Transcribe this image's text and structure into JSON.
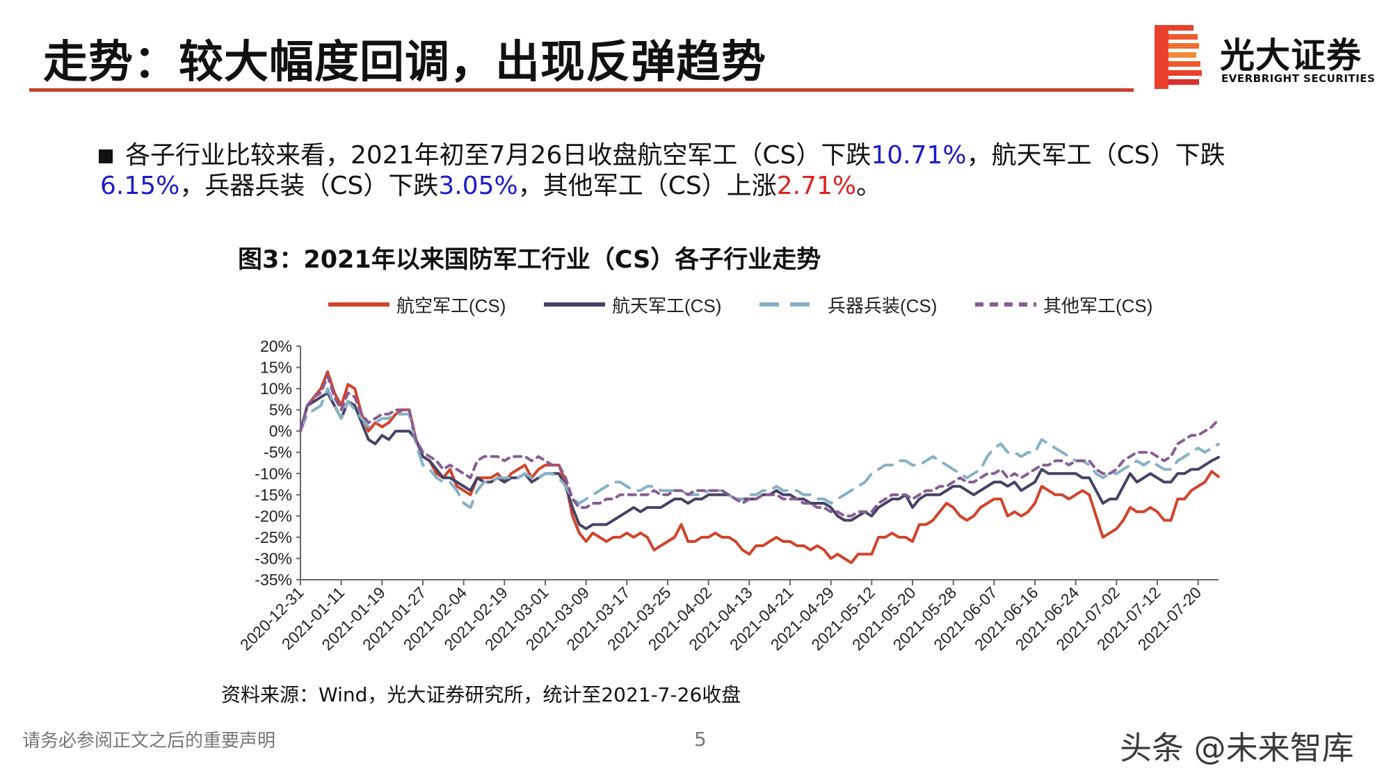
{
  "header": {
    "title": "走势：较大幅度回调，出现反弹趋势",
    "logo_cn": "光大证券",
    "logo_en": "EVERBRIGHT SECURITIES"
  },
  "bullet": {
    "p1": "各子行业比较来看，2021年初至7月26日收盘航空军工（CS）下跌",
    "v1": "10.71%",
    "p2": "，航天军工（CS）下跌",
    "v2": "6.15%",
    "p3": "，兵器兵装（CS）下跌",
    "v3": "3.05%",
    "p4": "，其他军工（CS）上涨",
    "v4": "2.71%",
    "p5": "。"
  },
  "source_note": "资料来源：Wind，光大证券研究所，统计至2021-7-26收盘",
  "footer": {
    "disclaimer": "请务必参阅正文之后的重要声明",
    "page": "5",
    "watermark": "头条 @未来智库"
  },
  "colors": {
    "accent": "#c8402a",
    "aviation": "#d1432a",
    "aerospace": "#454266",
    "weapons": "#85b0c6",
    "other": "#8a5a94",
    "value_blue": "#1a1acc",
    "value_red": "#e02020"
  },
  "chart_data": {
    "type": "line",
    "title": "图3：2021年以来国防军工行业（CS）各子行业走势",
    "xlabel": "",
    "ylabel": "",
    "ylim": [
      -35,
      20
    ],
    "yticks": [
      20,
      15,
      10,
      5,
      0,
      -5,
      -10,
      -15,
      -20,
      -25,
      -30,
      -35
    ],
    "ytick_labels": [
      "20%",
      "15%",
      "10%",
      "5%",
      "0%",
      "-5%",
      "-10%",
      "-15%",
      "-20%",
      "-25%",
      "-30%",
      "-35%"
    ],
    "grid": false,
    "legend_position": "top",
    "x_tick_labels": [
      "2020-12-31",
      "2021-01-11",
      "2021-01-19",
      "2021-01-27",
      "2021-02-04",
      "2021-02-19",
      "2021-03-01",
      "2021-03-09",
      "2021-03-17",
      "2021-03-25",
      "2021-04-02",
      "2021-04-13",
      "2021-04-21",
      "2021-04-29",
      "2021-05-12",
      "2021-05-20",
      "2021-05-28",
      "2021-06-07",
      "2021-06-16",
      "2021-06-24",
      "2021-07-02",
      "2021-07-12",
      "2021-07-20"
    ],
    "x_tick_index": [
      0,
      6,
      12,
      18,
      24,
      30,
      36,
      42,
      48,
      54,
      60,
      66,
      72,
      78,
      84,
      90,
      96,
      102,
      108,
      114,
      120,
      126,
      132
    ],
    "n_points": 136,
    "series": [
      {
        "name": "航空军工(CS)",
        "color": "#d1432a",
        "dash": "solid",
        "values": [
          0,
          6,
          8,
          10,
          14,
          9,
          6,
          11,
          10,
          4,
          0,
          2,
          1,
          2,
          4,
          5,
          5,
          -2,
          -6,
          -7,
          -10,
          -11,
          -9,
          -13,
          -14,
          -15,
          -11,
          -11,
          -11,
          -10,
          -12,
          -10,
          -9,
          -8,
          -11,
          -9,
          -8,
          -8,
          -8,
          -12,
          -20,
          -24,
          -26,
          -24,
          -25,
          -26,
          -25,
          -25,
          -24,
          -25,
          -24,
          -25,
          -28,
          -27,
          -26,
          -25,
          -22,
          -26,
          -26,
          -25,
          -25,
          -24,
          -25,
          -25,
          -26,
          -28,
          -29,
          -27,
          -27,
          -26,
          -25,
          -26,
          -26,
          -27,
          -27,
          -28,
          -27,
          -28,
          -30,
          -29,
          -30,
          -31,
          -29,
          -29,
          -29,
          -25,
          -25,
          -24,
          -25,
          -25,
          -26,
          -22,
          -22,
          -21,
          -19,
          -17,
          -18,
          -20,
          -21,
          -20,
          -18,
          -17,
          -16,
          -16,
          -20,
          -19,
          -20,
          -19,
          -17,
          -13,
          -14,
          -15,
          -15,
          -16,
          -15,
          -14,
          -15,
          -20,
          -25,
          -24,
          -23,
          -21,
          -18,
          -19,
          -19,
          -18,
          -19,
          -21,
          -21,
          -16,
          -16,
          -14,
          -13,
          -12,
          -9.5,
          -10.71
        ]
      },
      {
        "name": "航天军工(CS)",
        "color": "#454266",
        "dash": "solid",
        "values": [
          0,
          6,
          7,
          8,
          9,
          6,
          3,
          7,
          6,
          2,
          -2,
          -3,
          -1,
          -2,
          0,
          0,
          0,
          -2,
          -6,
          -7,
          -9,
          -11,
          -11,
          -12,
          -13,
          -14,
          -11,
          -12,
          -12,
          -11,
          -12,
          -11,
          -11,
          -10,
          -12,
          -11,
          -10,
          -10,
          -10,
          -13,
          -18,
          -22,
          -23,
          -22,
          -22,
          -22,
          -21,
          -20,
          -19,
          -18,
          -19,
          -18,
          -18,
          -18,
          -17,
          -16,
          -16,
          -17,
          -16,
          -16,
          -15,
          -15,
          -15,
          -15,
          -16,
          -16,
          -16,
          -16,
          -15,
          -15,
          -14,
          -15,
          -15,
          -16,
          -16,
          -17,
          -17,
          -17,
          -18,
          -20,
          -21,
          -21,
          -20,
          -19,
          -20,
          -18,
          -17,
          -16,
          -16,
          -15,
          -18,
          -16,
          -15,
          -15,
          -15,
          -14,
          -13,
          -13,
          -14,
          -15,
          -14,
          -13,
          -12,
          -12,
          -13,
          -12,
          -14,
          -13,
          -12,
          -9,
          -10,
          -10,
          -10,
          -10,
          -10,
          -11,
          -11,
          -14,
          -17,
          -16,
          -16,
          -13,
          -10,
          -12,
          -11,
          -10,
          -11,
          -12,
          -12,
          -10,
          -10,
          -9,
          -9,
          -8,
          -7,
          -6.15
        ]
      },
      {
        "name": "兵器兵装(CS)",
        "color": "#85b0c6",
        "dash": "long",
        "values": [
          0,
          4,
          5,
          6,
          10,
          6,
          3,
          7,
          5,
          3,
          1,
          2,
          3,
          3,
          4,
          4,
          4,
          -3,
          -8,
          -9,
          -11,
          -12,
          -12,
          -14,
          -17,
          -18,
          -14,
          -12,
          -12,
          -11,
          -11,
          -11,
          -11,
          -10,
          -11,
          -11,
          -10,
          -10,
          -11,
          -13,
          -16,
          -17,
          -16,
          -15,
          -14,
          -13,
          -12,
          -12,
          -13,
          -14,
          -14,
          -13,
          -13,
          -14,
          -14,
          -14,
          -14,
          -15,
          -15,
          -15,
          -14,
          -14,
          -14,
          -15,
          -16,
          -16,
          -15,
          -15,
          -14,
          -14,
          -13,
          -14,
          -14,
          -14,
          -15,
          -15,
          -16,
          -16,
          -17,
          -16,
          -15,
          -14,
          -13,
          -12,
          -10,
          -9,
          -8,
          -8,
          -7,
          -7,
          -8,
          -8,
          -7,
          -6,
          -7,
          -8,
          -9,
          -10,
          -11,
          -10,
          -9,
          -6,
          -4,
          -3,
          -5,
          -5,
          -6,
          -5,
          -5,
          -2,
          -3,
          -4,
          -5,
          -6,
          -7,
          -7,
          -8,
          -10,
          -11,
          -10,
          -10,
          -9,
          -8,
          -7,
          -8,
          -7,
          -8,
          -9,
          -9,
          -7,
          -6,
          -5,
          -4,
          -5,
          -4,
          -3.05
        ]
      },
      {
        "name": "其他军工(CS)",
        "color": "#8a5a94",
        "dash": "short",
        "values": [
          0,
          6,
          8,
          9,
          13,
          8,
          5,
          9,
          8,
          4,
          2,
          3,
          4,
          4,
          5,
          5,
          5,
          -2,
          -5,
          -6,
          -7,
          -9,
          -8,
          -9,
          -10,
          -11,
          -7,
          -6,
          -6,
          -6,
          -7,
          -6,
          -6,
          -6,
          -7,
          -6,
          -7,
          -8,
          -8,
          -11,
          -16,
          -18,
          -18,
          -17,
          -17,
          -16,
          -16,
          -15,
          -15,
          -15,
          -15,
          -15,
          -14,
          -15,
          -15,
          -14,
          -14,
          -15,
          -14,
          -14,
          -14,
          -14,
          -14,
          -15,
          -16,
          -17,
          -16,
          -16,
          -15,
          -15,
          -15,
          -16,
          -16,
          -16,
          -17,
          -17,
          -18,
          -18,
          -19,
          -19,
          -20,
          -20,
          -19,
          -19,
          -19,
          -17,
          -16,
          -15,
          -15,
          -15,
          -16,
          -15,
          -14,
          -14,
          -13,
          -13,
          -12,
          -11,
          -12,
          -12,
          -11,
          -10,
          -10,
          -9,
          -11,
          -10,
          -11,
          -10,
          -9,
          -8,
          -8,
          -7,
          -7,
          -8,
          -7,
          -7,
          -7,
          -9,
          -10,
          -10,
          -9,
          -7,
          -6,
          -5,
          -5,
          -5,
          -6,
          -7,
          -6,
          -3,
          -2,
          -1,
          -1,
          0,
          1,
          2.71
        ]
      }
    ]
  }
}
